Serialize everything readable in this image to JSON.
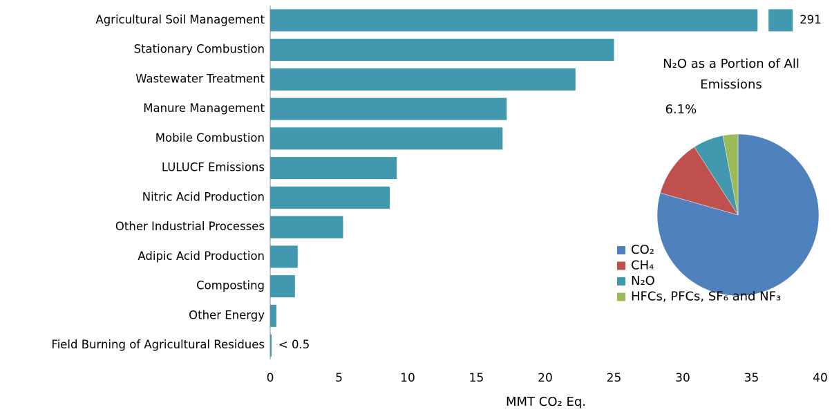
{
  "chart_data": [
    {
      "type": "bar",
      "orientation": "horizontal",
      "categories": [
        "Agricultural Soil Management",
        "Stationary Combustion",
        "Wastewater Treatment",
        "Manure Management",
        "Mobile Combustion",
        "LULUCF Emissions",
        "Nitric Acid Production",
        "Other Industrial Processes",
        "Adipic Acid Production",
        "Composting",
        "Other Energy",
        "Field Burning of Agricultural Residues"
      ],
      "values": [
        291,
        25.0,
        22.2,
        17.2,
        16.9,
        9.2,
        8.7,
        5.3,
        2.0,
        1.8,
        0.45,
        0.1
      ],
      "value_labels": [
        "291",
        null,
        null,
        null,
        null,
        null,
        null,
        null,
        null,
        null,
        null,
        "< 0.5"
      ],
      "color": "#4198af",
      "xlabel": "MMT CO₂ Eq.",
      "xlim": [
        0,
        40
      ],
      "xticks": [
        0,
        5,
        10,
        15,
        20,
        25,
        30,
        35,
        40
      ],
      "grid": false
    },
    {
      "type": "pie",
      "title": "N₂O as a Portion of All Emissions",
      "categories": [
        "CO₂",
        "CH₄",
        "N₂O",
        "HFCs, PFCs, SF₆ and NF₃"
      ],
      "values": [
        79.4,
        11.5,
        6.1,
        3.0
      ],
      "value_labels": [
        null,
        null,
        "6.1%",
        null
      ],
      "colors": [
        "#4f81bd",
        "#c0504d",
        "#4198af",
        "#9bbb59"
      ],
      "legend": "bottom-left"
    }
  ]
}
